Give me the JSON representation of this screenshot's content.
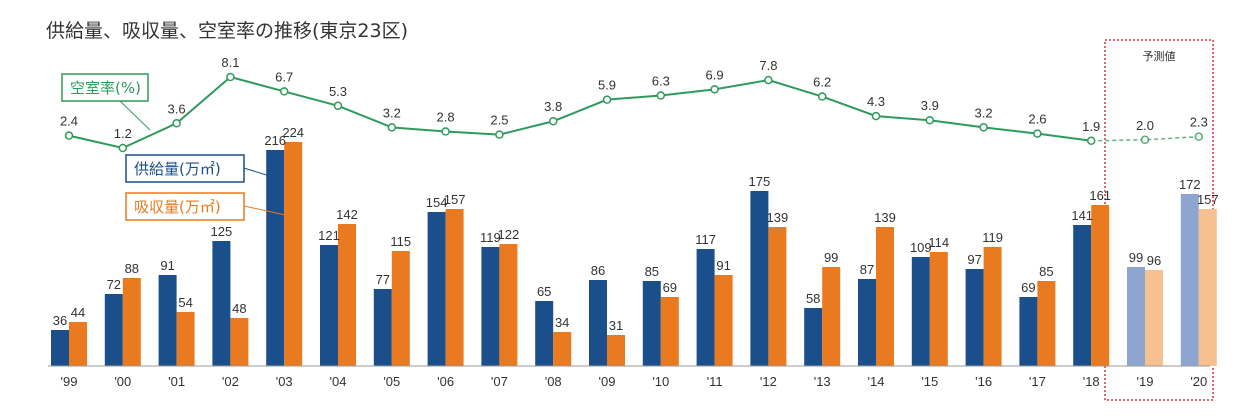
{
  "title": "供給量、吸収量、空室率の推移(東京23区)",
  "forecast_label": "予測値",
  "legend": {
    "vacancy": "空室率(%)",
    "supply": "供給量(万㎡)",
    "absorption": "吸収量(万㎡)"
  },
  "colors": {
    "supply": "#1a4f8b",
    "absorption": "#ea7a1f",
    "supply_forecast": "#8ea6cf",
    "absorption_forecast": "#f6c08f",
    "vacancy": "#2e9a5c",
    "forecast_box": "#e0303a"
  },
  "chart_data": {
    "type": "bar+line",
    "categories": [
      "'99",
      "'00",
      "'01",
      "'02",
      "'03",
      "'04",
      "'05",
      "'06",
      "'07",
      "'08",
      "'09",
      "'10",
      "'11",
      "'12",
      "'13",
      "'14",
      "'15",
      "'16",
      "'17",
      "'18",
      "'19",
      "'20"
    ],
    "forecast_categories": [
      "'19",
      "'20"
    ],
    "series": [
      {
        "name": "供給量(万㎡)",
        "type": "bar",
        "values": [
          36,
          72,
          91,
          125,
          216,
          121,
          77,
          154,
          119,
          65,
          86,
          85,
          117,
          175,
          58,
          87,
          109,
          97,
          69,
          141,
          99,
          172
        ]
      },
      {
        "name": "吸収量(万㎡)",
        "type": "bar",
        "values": [
          44,
          88,
          54,
          48,
          224,
          142,
          115,
          157,
          122,
          34,
          31,
          69,
          91,
          139,
          99,
          139,
          114,
          119,
          85,
          161,
          96,
          157
        ]
      },
      {
        "name": "空室率(%)",
        "type": "line",
        "values": [
          2.4,
          1.2,
          3.6,
          8.1,
          6.7,
          5.3,
          3.2,
          2.8,
          2.5,
          3.8,
          5.9,
          6.3,
          6.9,
          7.8,
          6.2,
          4.3,
          3.9,
          3.2,
          2.6,
          1.9,
          2.0,
          2.3
        ]
      }
    ]
  }
}
